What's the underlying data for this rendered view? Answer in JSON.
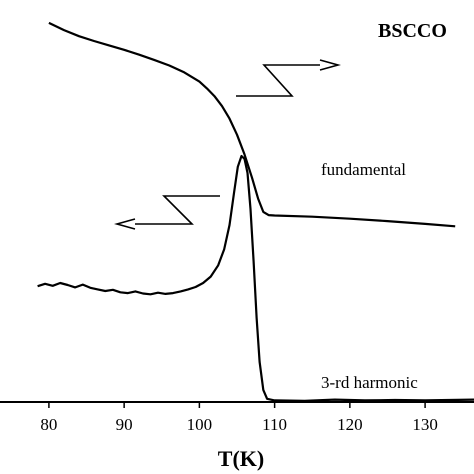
{
  "chart_data": {
    "type": "line",
    "title": "BSCCO",
    "xlabel": "T(K)",
    "ylabel": "",
    "xlim": [
      73.5,
      136.5
    ],
    "ylim": [
      0,
      1
    ],
    "x_ticks": [
      80,
      90,
      100,
      110,
      120,
      130
    ],
    "x_tick_labels": [
      "80",
      "90",
      "100",
      "110",
      "120",
      "130"
    ],
    "grid": false,
    "series": [
      {
        "name": "fundamental",
        "points": [
          [
            80.0,
            0.943
          ],
          [
            82.0,
            0.925
          ],
          [
            84.0,
            0.91
          ],
          [
            86.0,
            0.898
          ],
          [
            88.0,
            0.887
          ],
          [
            90.0,
            0.876
          ],
          [
            92.0,
            0.864
          ],
          [
            94.0,
            0.851
          ],
          [
            96.0,
            0.837
          ],
          [
            98.0,
            0.82
          ],
          [
            100.0,
            0.797
          ],
          [
            101.0,
            0.78
          ],
          [
            102.0,
            0.761
          ],
          [
            103.0,
            0.736
          ],
          [
            104.0,
            0.705
          ],
          [
            105.0,
            0.665
          ],
          [
            106.0,
            0.616
          ],
          [
            107.0,
            0.558
          ],
          [
            107.8,
            0.506
          ],
          [
            108.5,
            0.473
          ],
          [
            109.2,
            0.465
          ],
          [
            110.0,
            0.464
          ],
          [
            115.0,
            0.461
          ],
          [
            120.0,
            0.456
          ],
          [
            125.0,
            0.45
          ],
          [
            130.0,
            0.443
          ],
          [
            134.0,
            0.437
          ]
        ]
      },
      {
        "name": "3-rd harmonic",
        "points": [
          [
            78.5,
            0.288
          ],
          [
            79.5,
            0.294
          ],
          [
            80.5,
            0.289
          ],
          [
            81.5,
            0.296
          ],
          [
            82.5,
            0.291
          ],
          [
            83.5,
            0.285
          ],
          [
            84.5,
            0.292
          ],
          [
            85.5,
            0.284
          ],
          [
            86.5,
            0.28
          ],
          [
            87.5,
            0.276
          ],
          [
            88.5,
            0.279
          ],
          [
            89.5,
            0.273
          ],
          [
            90.5,
            0.271
          ],
          [
            91.5,
            0.275
          ],
          [
            92.5,
            0.27
          ],
          [
            93.5,
            0.268
          ],
          [
            94.5,
            0.272
          ],
          [
            95.5,
            0.269
          ],
          [
            96.5,
            0.271
          ],
          [
            97.5,
            0.275
          ],
          [
            98.5,
            0.28
          ],
          [
            99.5,
            0.286
          ],
          [
            100.5,
            0.296
          ],
          [
            101.5,
            0.312
          ],
          [
            102.5,
            0.34
          ],
          [
            103.3,
            0.38
          ],
          [
            104.0,
            0.44
          ],
          [
            104.6,
            0.52
          ],
          [
            105.1,
            0.585
          ],
          [
            105.6,
            0.612
          ],
          [
            106.0,
            0.605
          ],
          [
            106.4,
            0.57
          ],
          [
            106.8,
            0.48
          ],
          [
            107.2,
            0.35
          ],
          [
            107.6,
            0.21
          ],
          [
            108.0,
            0.1
          ],
          [
            108.5,
            0.03
          ],
          [
            109.0,
            0.008
          ],
          [
            110.0,
            0.004
          ],
          [
            114.0,
            0.003
          ],
          [
            118.0,
            0.006
          ],
          [
            122.0,
            0.004
          ],
          [
            126.0,
            0.005
          ],
          [
            130.0,
            0.004
          ],
          [
            136.5,
            0.006
          ]
        ]
      }
    ],
    "annotations": [
      "fundamental",
      "3-rd harmonic"
    ]
  }
}
